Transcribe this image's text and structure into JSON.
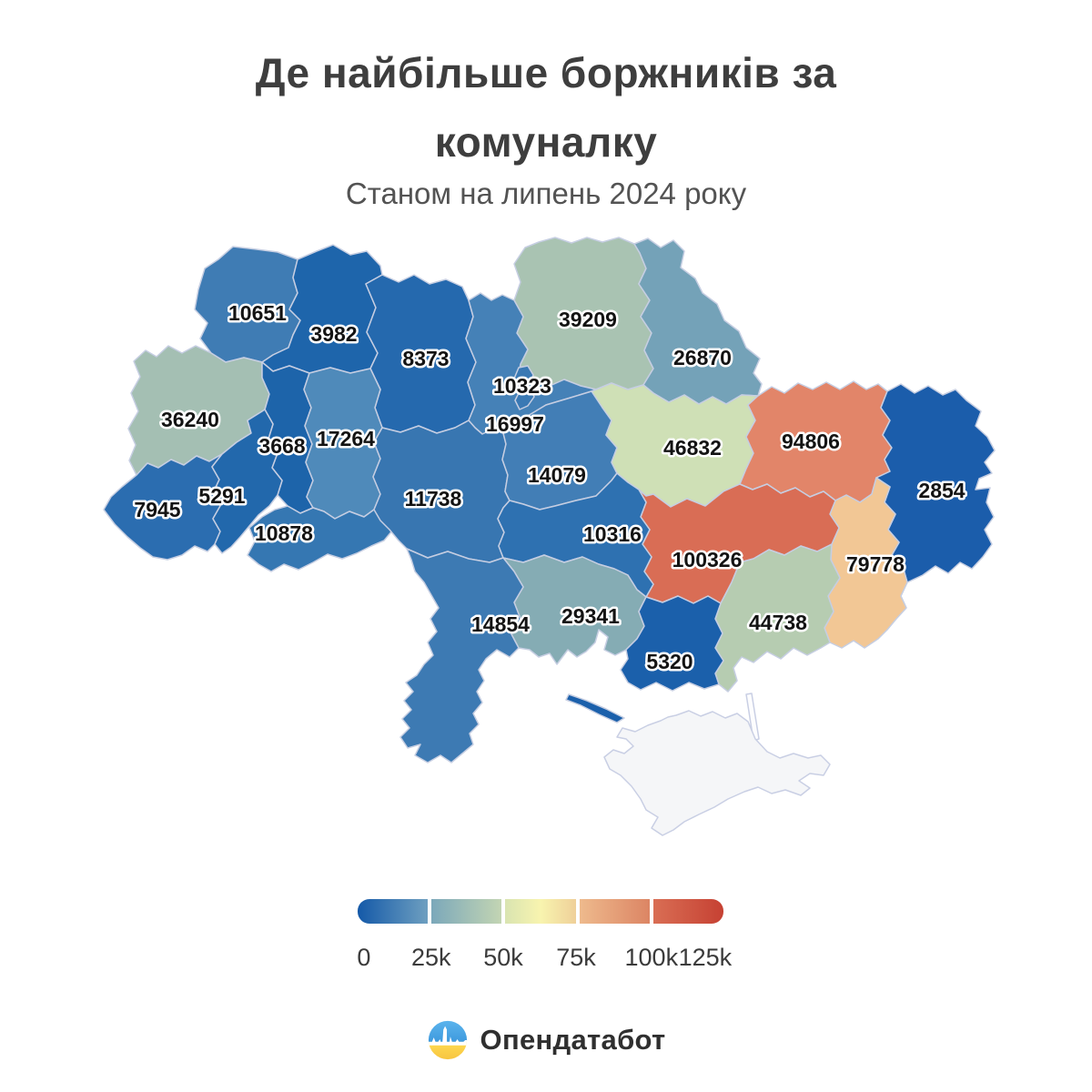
{
  "title": "Де найбільше боржників за комуналку",
  "subtitle": "Станом на липень 2024 року",
  "footer": {
    "brand": "Опендатабот"
  },
  "chart_data": {
    "type": "choropleth",
    "title": "Де найбільше боржників за комуналку",
    "subtitle": "Станом на липень 2024 року",
    "legend": {
      "ticks": [
        "0",
        "25k",
        "50k",
        "75k",
        "100k",
        "125k"
      ],
      "tick_positions_pct": [
        1.7,
        20.1,
        39.8,
        59.7,
        80.3,
        95.0
      ],
      "range": [
        0,
        125000
      ],
      "segments": [
        [
          "#1459a8",
          "#6e9fc0"
        ],
        [
          "#7ba8ba",
          "#c3d5b3"
        ],
        [
          "#d9e4b1",
          "#f8f4af",
          "#efd099"
        ],
        [
          "#eeba8d",
          "#dc8564"
        ],
        [
          "#d96e54",
          "#c64133"
        ]
      ]
    },
    "border_color": "#c6cee2",
    "no_data_color": "#f5f6f8",
    "regions": [
      {
        "id": "volyn",
        "value": "10651",
        "color": "#3f7cb4",
        "label": [
          283,
          344
        ]
      },
      {
        "id": "rivne",
        "value": "3982",
        "color": "#1e65ab",
        "label": [
          367,
          367
        ]
      },
      {
        "id": "zhytomyr",
        "value": "8373",
        "color": "#2569ae",
        "label": [
          468,
          394
        ]
      },
      {
        "id": "chernihiv",
        "value": "39209",
        "color": "#a9c3b2",
        "label": [
          646,
          351
        ]
      },
      {
        "id": "sumy",
        "value": "26870",
        "color": "#74a2b8",
        "label": [
          772,
          393
        ]
      },
      {
        "id": "kyiv-oblast",
        "value": "16997",
        "color": "#4581b7",
        "label": [
          566,
          466
        ]
      },
      {
        "id": "kyiv-city",
        "value": "10323",
        "color": "#3a79b4",
        "label": [
          574,
          424
        ]
      },
      {
        "id": "lviv",
        "value": "36240",
        "color": "#a4bfb3",
        "label": [
          209,
          461
        ]
      },
      {
        "id": "ternopil",
        "value": "3668",
        "color": "#1d64aa",
        "label": [
          310,
          490
        ]
      },
      {
        "id": "khmelnytskyi",
        "value": "17264",
        "color": "#4f8aba",
        "label": [
          380,
          482
        ]
      },
      {
        "id": "zakarpattia",
        "value": "7945",
        "color": "#2b6db0",
        "label": [
          173,
          560
        ]
      },
      {
        "id": "ivano-frankivsk",
        "value": "5291",
        "color": "#2268ac",
        "label": [
          244,
          545
        ]
      },
      {
        "id": "chernivtsi",
        "value": "10878",
        "color": "#3577b2",
        "label": [
          312,
          586
        ]
      },
      {
        "id": "vinnytsia",
        "value": "11738",
        "color": "#3876b1",
        "label": [
          476,
          548
        ]
      },
      {
        "id": "cherkasy",
        "value": "14079",
        "color": "#427eb6",
        "label": [
          612,
          522
        ]
      },
      {
        "id": "poltava",
        "value": "46832",
        "color": "#cfe0b6",
        "label": [
          761,
          492
        ]
      },
      {
        "id": "kharkiv",
        "value": "94806",
        "color": "#e28569",
        "label": [
          891,
          485
        ]
      },
      {
        "id": "luhansk",
        "value": "2854",
        "color": "#1b5dab",
        "label": [
          1035,
          539
        ]
      },
      {
        "id": "donetsk",
        "value": "79778",
        "color": "#f2c795",
        "label": [
          962,
          620
        ]
      },
      {
        "id": "dnipropetrovsk",
        "value": "100326",
        "color": "#d96d55",
        "label": [
          777,
          615
        ]
      },
      {
        "id": "zaporizhzhia",
        "value": "44738",
        "color": "#b6ccb1",
        "label": [
          855,
          684
        ]
      },
      {
        "id": "kirovohrad",
        "value": "10316",
        "color": "#2e71b1",
        "label": [
          673,
          587
        ]
      },
      {
        "id": "mykolaiv",
        "value": "29341",
        "color": "#85acb4",
        "label": [
          649,
          677
        ]
      },
      {
        "id": "odesa",
        "value": "14854",
        "color": "#3d7ab3",
        "label": [
          550,
          686
        ]
      },
      {
        "id": "kherson",
        "value": "5320",
        "color": "#1b60ab",
        "label": [
          736,
          727
        ]
      },
      {
        "id": "kinburn-spit",
        "value": "",
        "color": "#1b60ab",
        "label": null
      },
      {
        "id": "crimea",
        "value": "",
        "color": "#f5f6f8",
        "label": null,
        "no_data": true
      }
    ]
  }
}
